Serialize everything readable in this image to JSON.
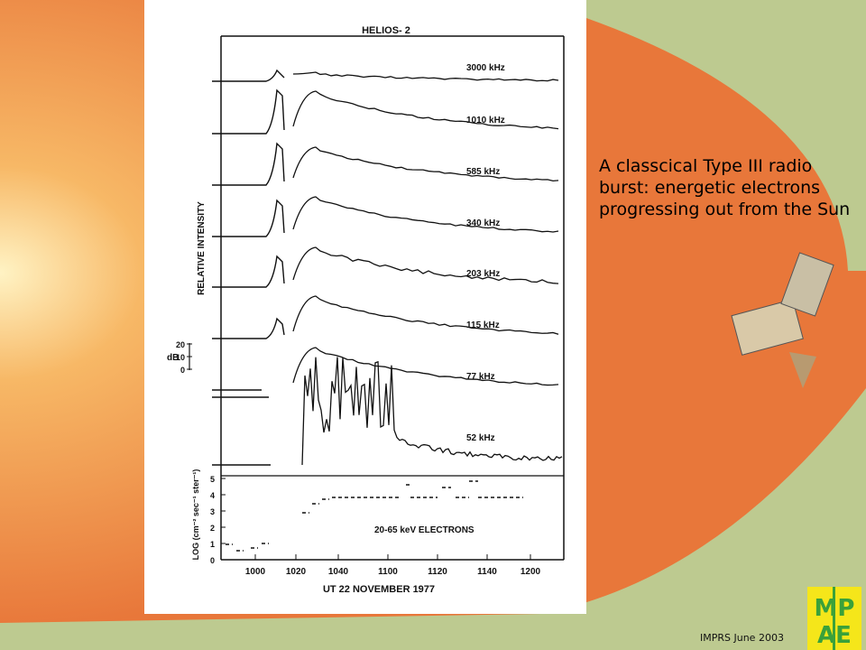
{
  "slide": {
    "caption": "A classcical Type III radio burst: energetic electrons progressing out from the Sun",
    "footer": "IMPRS June 2003",
    "logo_text_top": "MP",
    "logo_text_bottom": "AE",
    "colors": {
      "background": "#e8773a",
      "band": "#b8d39a",
      "logo_bg": "#f5e61a",
      "logo_fg": "#3aa13a"
    }
  },
  "figure": {
    "title": "HELIOS- 2",
    "ylabel_top": "RELATIVE INTENSITY",
    "db_scale": {
      "label": "dB",
      "ticks": [
        "20",
        "10",
        "0"
      ]
    },
    "channels": [
      {
        "label": "3000 kHz"
      },
      {
        "label": "1010 kHz"
      },
      {
        "label": "585 kHz"
      },
      {
        "label": "340 kHz"
      },
      {
        "label": "203 kHz"
      },
      {
        "label": "115 kHz"
      },
      {
        "label": "77 kHz"
      },
      {
        "label": "52 kHz"
      }
    ],
    "electrons": {
      "ylabel": "LOG (cm⁻² sec⁻¹ ster⁻¹)",
      "yticks": [
        "5",
        "4",
        "3",
        "2",
        "1",
        "0"
      ],
      "series_label": "20-65 keV ELECTRONS"
    },
    "xaxis": {
      "ticks": [
        "1000",
        "1020",
        "1040",
        "1100",
        "1120",
        "1140",
        "1200"
      ],
      "label": "UT  22  NOVEMBER 1977"
    }
  }
}
